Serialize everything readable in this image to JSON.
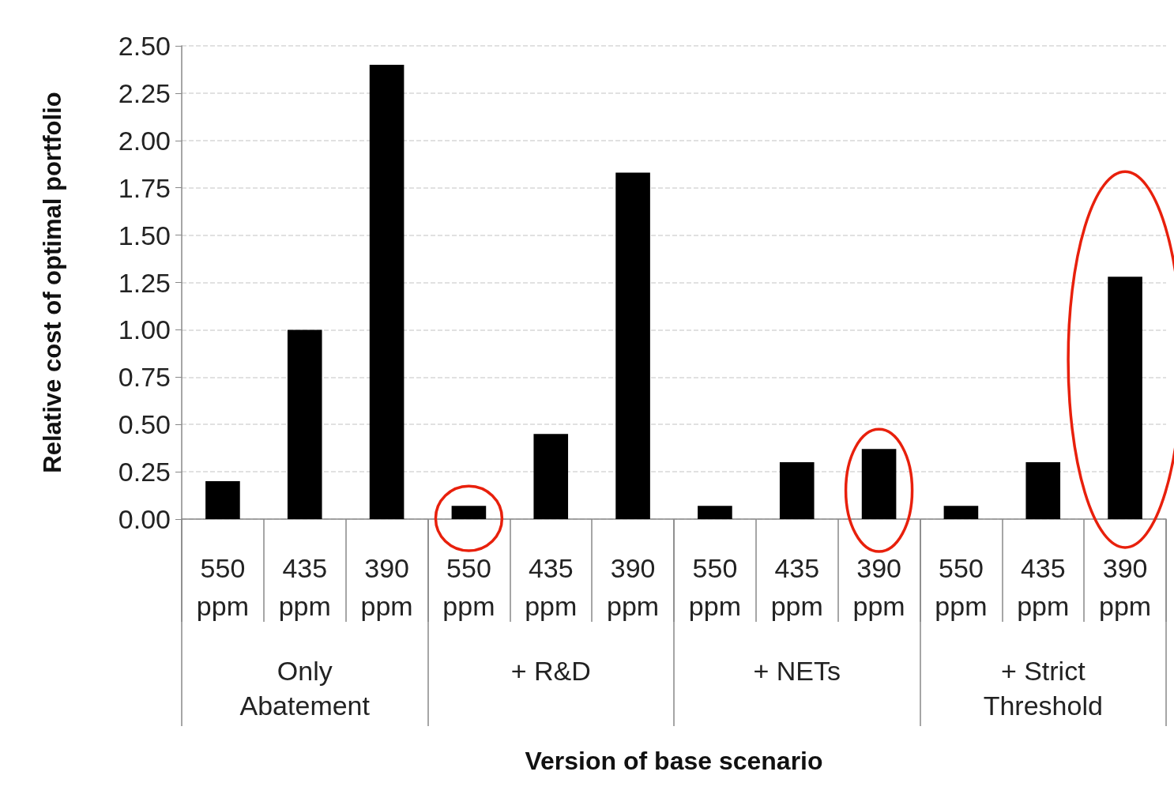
{
  "chart_data": {
    "type": "bar",
    "xlabel": "Version of base scenario",
    "ylabel": "Relative cost of optimal portfolio",
    "categories": [
      "550 ppm",
      "435 ppm",
      "390 ppm",
      "550 ppm",
      "435 ppm",
      "390 ppm",
      "550 ppm",
      "435 ppm",
      "390 ppm",
      "550 ppm",
      "435 ppm",
      "390 ppm"
    ],
    "values": [
      0.2,
      1.0,
      2.4,
      0.07,
      0.45,
      1.83,
      0.07,
      0.3,
      0.37,
      0.07,
      0.3,
      1.28
    ],
    "color": "#000000",
    "annotations": [
      "Only Abatement",
      "+ R&D",
      "+ NETs",
      "+ Strict Threshold"
    ],
    "ylim": [
      0,
      2.5
    ],
    "yticks": [
      {
        "value": 0,
        "label": "0.00"
      },
      {
        "value": 0.25,
        "label": "0.25"
      },
      {
        "value": 0.5,
        "label": "0.50"
      },
      {
        "value": 0.75,
        "label": "0.75"
      },
      {
        "value": 1,
        "label": "1.00"
      },
      {
        "value": 1.25,
        "label": "1.25"
      },
      {
        "value": 1.5,
        "label": "1.50"
      },
      {
        "value": 1.75,
        "label": "1.75"
      },
      {
        "value": 2,
        "label": "2.00"
      },
      {
        "value": 2.25,
        "label": "2.25"
      },
      {
        "value": 2.5,
        "label": "2.50"
      }
    ],
    "grid": "y"
  }
}
